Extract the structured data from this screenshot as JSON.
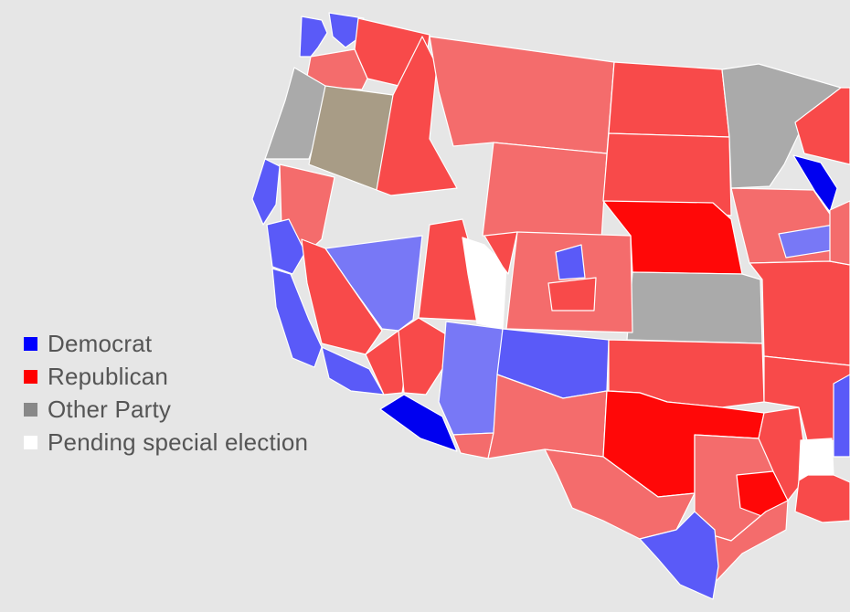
{
  "legend": {
    "items": [
      {
        "label": "Democrat",
        "color": "#0000ff"
      },
      {
        "label": "Republican",
        "color": "#ff0000"
      },
      {
        "label": "Other Party",
        "color": "#888888"
      },
      {
        "label": "Pending special election",
        "color": "#ffffff"
      }
    ]
  },
  "colors": {
    "background": "#e6e6e6",
    "dem_strong": "#0000f0",
    "dem": "#5a5af8",
    "dem_light": "#7878f6",
    "rep_strong": "#ff0808",
    "rep": "#f84a4a",
    "rep_light": "#f46c6c",
    "other": "#aaaaaa",
    "other_tan": "#a89c86",
    "pending": "#ffffff"
  }
}
